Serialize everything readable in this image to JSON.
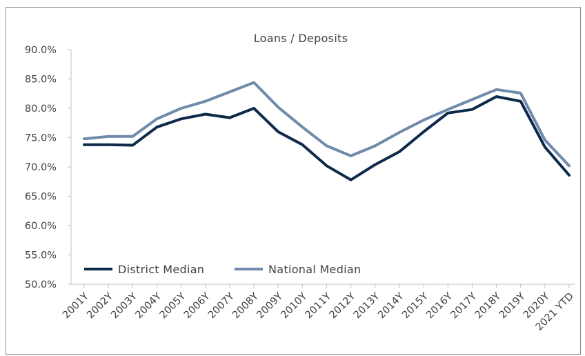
{
  "chart_data": {
    "type": "line",
    "title": "Loans / Deposits",
    "xlabel": "",
    "ylabel": "",
    "ylim": [
      50,
      90
    ],
    "y_ticks": [
      "50.0%",
      "55.0%",
      "60.0%",
      "65.0%",
      "70.0%",
      "75.0%",
      "80.0%",
      "85.0%",
      "90.0%"
    ],
    "grid": false,
    "legend_position": "bottom-left",
    "categories": [
      "2001Y",
      "2002Y",
      "2003Y",
      "2004Y",
      "2005Y",
      "2006Y",
      "2007Y",
      "2008Y",
      "2009Y",
      "2010Y",
      "2011Y",
      "2012Y",
      "2013Y",
      "2014Y",
      "2015Y",
      "2016Y",
      "2017Y",
      "2018Y",
      "2019Y",
      "2020Y",
      "2021 YTD"
    ],
    "series": [
      {
        "name": "District Median",
        "color": "#0d2a4a",
        "values": [
          73.8,
          73.8,
          73.7,
          76.8,
          78.2,
          79.0,
          78.4,
          80.0,
          76.0,
          73.8,
          70.2,
          67.8,
          70.4,
          72.6,
          76.0,
          79.2,
          79.8,
          82.0,
          81.2,
          73.4,
          68.6
        ]
      },
      {
        "name": "National Median",
        "color": "#6f8aaa",
        "values": [
          74.8,
          75.2,
          75.2,
          78.2,
          80.0,
          81.2,
          82.8,
          84.4,
          80.2,
          76.8,
          73.6,
          71.9,
          73.6,
          75.9,
          78.0,
          79.8,
          81.5,
          83.2,
          82.6,
          74.6,
          70.2
        ]
      }
    ]
  }
}
